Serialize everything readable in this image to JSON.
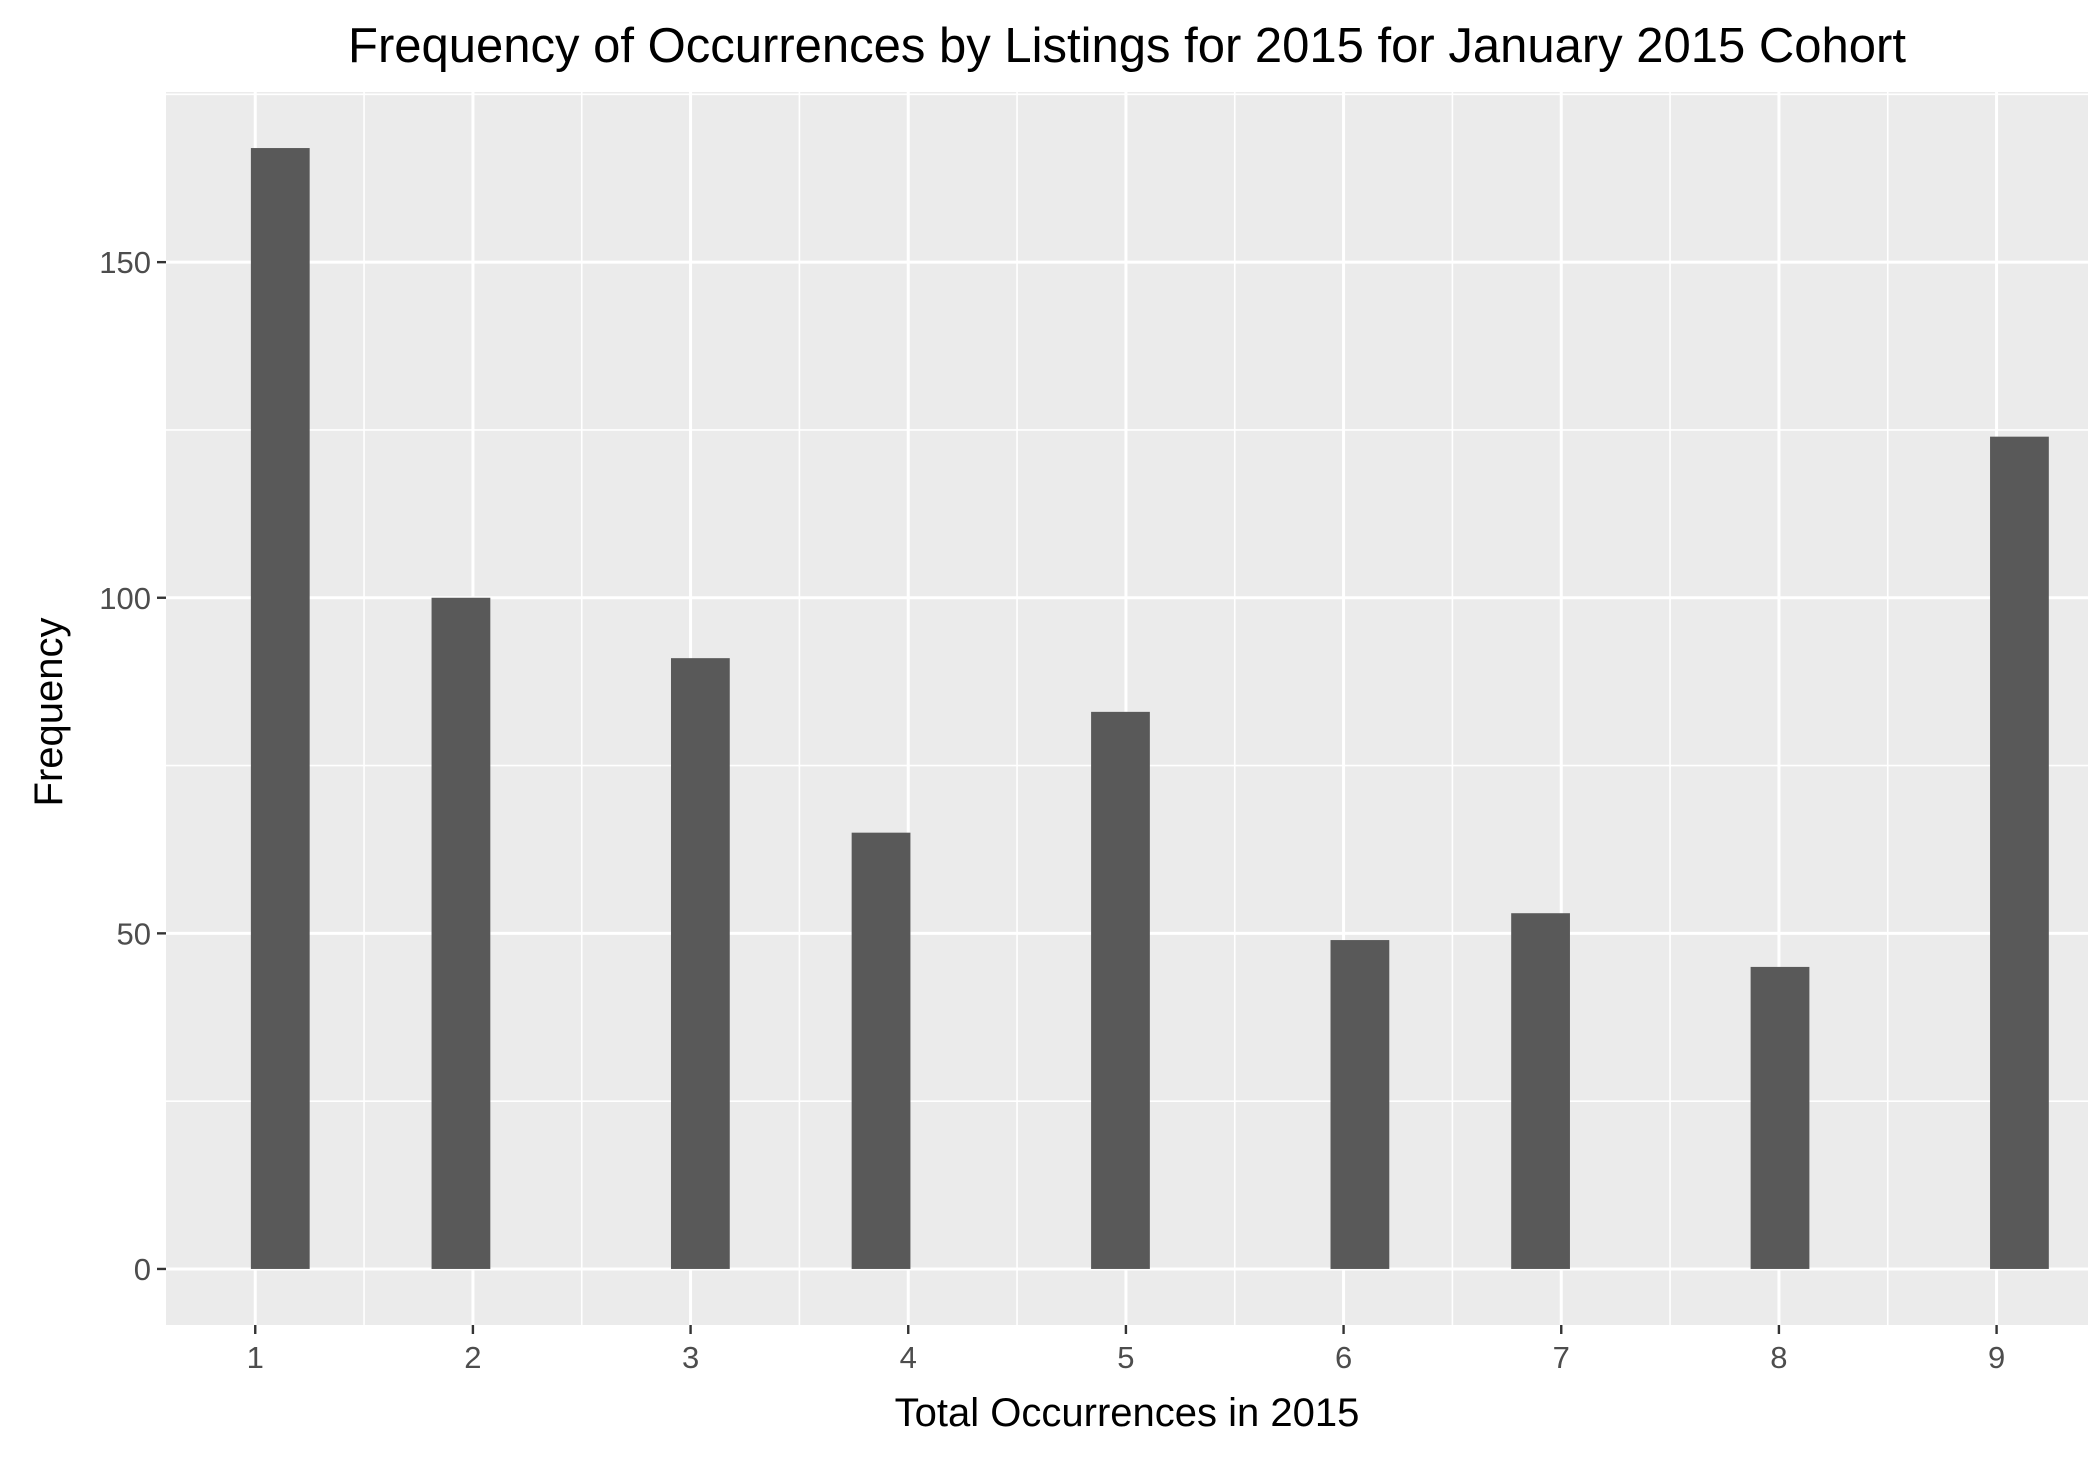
{
  "chart_data": {
    "type": "bar",
    "title": "Frequency of Occurrences by Listings for 2015 for January 2015 Cohort",
    "xlabel": "Total Occurrences in 2015",
    "ylabel": "Frequency",
    "x": [
      1,
      2,
      3,
      4,
      5,
      6,
      7,
      8,
      9
    ],
    "x_ticks": [
      "1",
      "2",
      "3",
      "4",
      "5",
      "6",
      "7",
      "8",
      "9"
    ],
    "bars": [
      {
        "x_start": 0.98,
        "x_end": 1.25,
        "value": 167
      },
      {
        "x_start": 1.81,
        "x_end": 2.08,
        "value": 100
      },
      {
        "x_start": 2.91,
        "x_end": 3.18,
        "value": 91
      },
      {
        "x_start": 3.74,
        "x_end": 4.01,
        "value": 65
      },
      {
        "x_start": 4.84,
        "x_end": 5.11,
        "value": 83
      },
      {
        "x_start": 5.94,
        "x_end": 6.21,
        "value": 49
      },
      {
        "x_start": 6.77,
        "x_end": 7.04,
        "value": 53
      },
      {
        "x_start": 7.87,
        "x_end": 8.14,
        "value": 45
      },
      {
        "x_start": 8.97,
        "x_end": 9.24,
        "value": 124
      }
    ],
    "y_ticks": [
      0,
      50,
      100,
      150
    ],
    "xlim": [
      0.59,
      9.42
    ],
    "ylim": [
      -8.35,
      175.35
    ],
    "grid": true,
    "colors": {
      "panel_background": "#ebebeb",
      "grid_line": "#ffffff",
      "bar_fill": "#595959",
      "tick_text": "#4d4d4d",
      "axis_tick": "#333333"
    }
  }
}
